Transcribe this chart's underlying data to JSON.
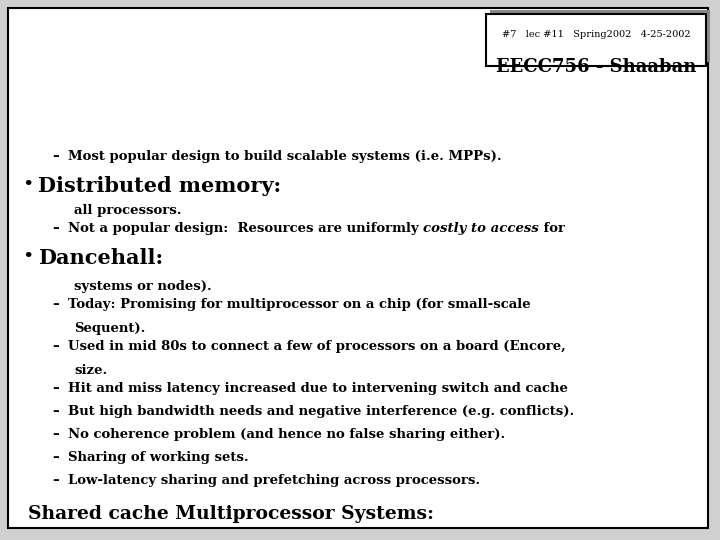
{
  "bg_color": "#d0d0d0",
  "slide_bg": "#ffffff",
  "border_color": "#000000",
  "title": "Shared cache Multiprocessor Systems:",
  "title_fontsize": 13.5,
  "section1_lines": [
    [
      "Low-latency sharing and prefetching across processors."
    ],
    [
      "Sharing of working sets."
    ],
    [
      "No coherence problem (and hence no false sharing either)."
    ],
    [
      "But high bandwidth needs and negative interference (e.g. conflicts)."
    ],
    [
      "Hit and miss latency increased due to intervening switch and cache",
      "size."
    ],
    [
      "Used in mid 80s to connect a few of processors on a board (Encore,",
      "Sequent)."
    ],
    [
      "Today: Promising for multiprocessor on a chip (for small-scale",
      "systems or nodes)."
    ]
  ],
  "section2_title": "Dancehall:",
  "section2_title_fontsize": 15,
  "section2_line1_pre": "Not a popular design:  Resources are uniformly ",
  "section2_line1_italic": "costly to access",
  "section2_line1_post": " for",
  "section2_line2": "all processors.",
  "section3_title": "Distributed memory:",
  "section3_title_fontsize": 15,
  "section3_bullet": "Most popular design to build scalable systems (i.e. MPPs).",
  "footer_box_color": "#ffffff",
  "footer_border": "#000000",
  "footer_title": "EECC756 - Shaaban",
  "footer_title_fontsize": 13,
  "footer_sub": "#7   lec #11   Spring2002   4-25-2002",
  "footer_sub_fontsize": 7,
  "text_color": "#000000",
  "bullet_fontsize": 9.5
}
